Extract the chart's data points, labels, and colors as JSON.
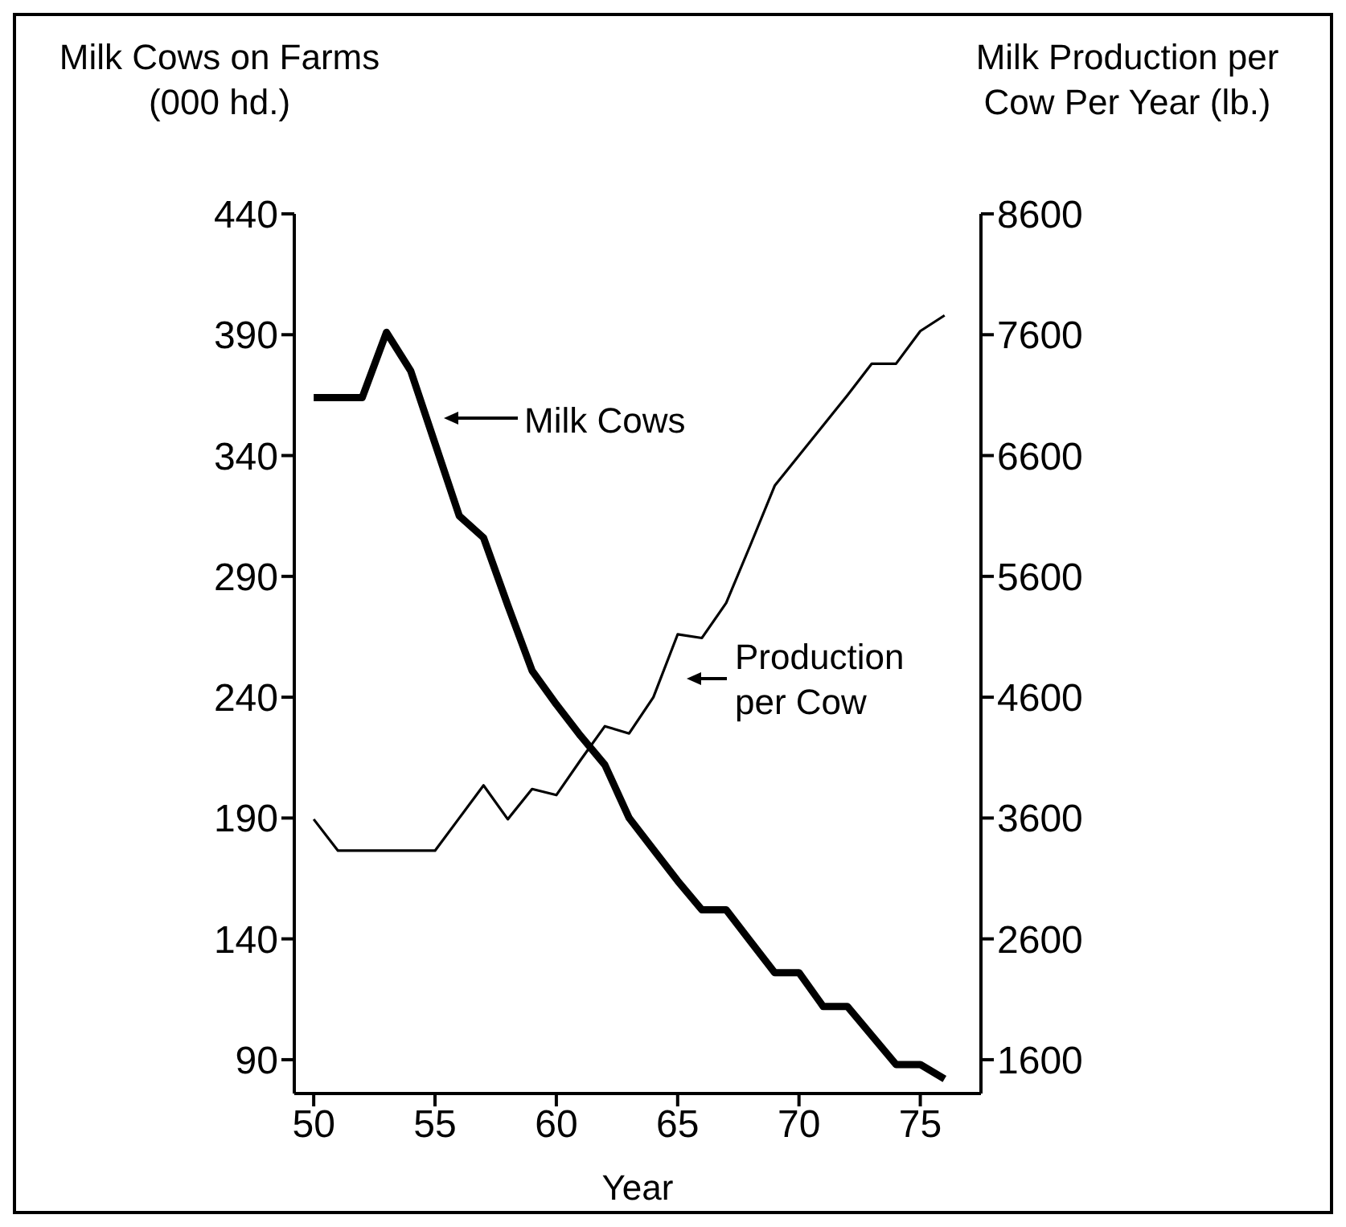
{
  "chart_data": {
    "type": "line",
    "xlabel": "Year",
    "ylabel": "Milk Cows on Farms (000 hd.)",
    "y2label": "Milk Production per Cow Per Year (lb.)",
    "x": [
      50,
      51,
      52,
      53,
      54,
      55,
      56,
      57,
      58,
      59,
      60,
      61,
      62,
      63,
      64,
      65,
      66,
      67,
      68,
      69,
      70,
      71,
      72,
      73,
      74,
      75,
      76
    ],
    "series": [
      {
        "name": "Milk Cows",
        "color": "#000000",
        "values": [
          364,
          364,
          364,
          391,
          375,
          345,
          315,
          306,
          278,
          251,
          237,
          224,
          212,
          190,
          177,
          164,
          152,
          152,
          139,
          126,
          126,
          112,
          112,
          100,
          88,
          88,
          82
        ]
      },
      {
        "name": "Production per Cow",
        "color": "#000000",
        "axis": "y2",
        "values": [
          3590,
          3330,
          3330,
          3330,
          3330,
          3330,
          3600,
          3870,
          3590,
          3840,
          3790,
          4080,
          4360,
          4300,
          4600,
          5120,
          5090,
          5380,
          5860,
          6350,
          6600,
          6850,
          7100,
          7360,
          7360,
          7630,
          7760
        ]
      }
    ],
    "xlim": [
      49.2,
      77.5
    ],
    "xticks": [
      50,
      55,
      60,
      65,
      70,
      75
    ],
    "ylim": [
      76,
      440
    ],
    "yticks": [
      90,
      140,
      190,
      240,
      290,
      340,
      390,
      440
    ],
    "y2lim": [
      1320,
      8600
    ],
    "y2ticks": [
      1600,
      2600,
      3600,
      4600,
      5600,
      6600,
      7600,
      8600
    ],
    "grid": false,
    "legend": "center",
    "line_style": "solid",
    "marker": "none"
  }
}
